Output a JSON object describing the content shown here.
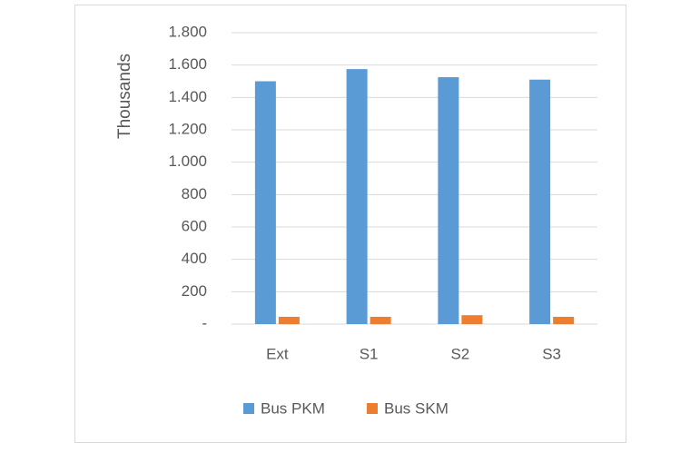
{
  "chart_data": {
    "type": "bar",
    "y_axis_label": "Thousands",
    "categories": [
      "Ext",
      "S1",
      "S2",
      "S3"
    ],
    "series": [
      {
        "name": "Bus PKM",
        "color": "#5b9bd5",
        "values": [
          1500,
          1575,
          1525,
          1510
        ]
      },
      {
        "name": "Bus SKM",
        "color": "#ed7d31",
        "values": [
          45,
          45,
          55,
          45
        ]
      }
    ],
    "ylim": [
      0,
      1800
    ],
    "yticks": [
      {
        "value": 0,
        "label": "-"
      },
      200,
      400,
      600,
      800,
      {
        "value": 1000,
        "label": "1.000"
      },
      {
        "value": 1200,
        "label": "1.200"
      },
      {
        "value": 1400,
        "label": "1.400"
      },
      {
        "value": 1600,
        "label": "1.600"
      },
      {
        "value": 1800,
        "label": "1.800"
      }
    ],
    "grid": true,
    "legend": "bottom"
  }
}
